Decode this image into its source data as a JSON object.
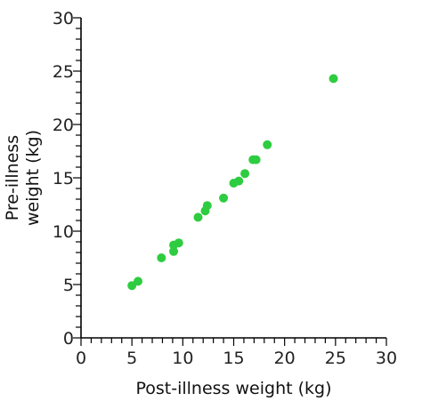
{
  "chart_data": {
    "type": "scatter",
    "title": "",
    "xlabel": "Post-illness weight (kg)",
    "ylabel_lines": [
      "Pre-illness",
      "weight (kg)"
    ],
    "xlim": [
      0,
      30
    ],
    "ylim": [
      0,
      30
    ],
    "major_ticks": [
      0,
      5,
      10,
      15,
      20,
      25,
      30
    ],
    "minor_tick_step": 1,
    "grid": false,
    "point_color": "#2ecc40",
    "series": [
      {
        "points": [
          {
            "x": 5.0,
            "y": 4.9
          },
          {
            "x": 5.6,
            "y": 5.3
          },
          {
            "x": 7.9,
            "y": 7.5
          },
          {
            "x": 9.1,
            "y": 8.1
          },
          {
            "x": 9.1,
            "y": 8.7
          },
          {
            "x": 9.6,
            "y": 8.9
          },
          {
            "x": 11.5,
            "y": 11.3
          },
          {
            "x": 12.2,
            "y": 11.9
          },
          {
            "x": 12.4,
            "y": 12.4
          },
          {
            "x": 14.0,
            "y": 13.1
          },
          {
            "x": 15.0,
            "y": 14.5
          },
          {
            "x": 15.5,
            "y": 14.7
          },
          {
            "x": 16.1,
            "y": 15.4
          },
          {
            "x": 16.9,
            "y": 16.7
          },
          {
            "x": 17.2,
            "y": 16.7
          },
          {
            "x": 18.3,
            "y": 18.1
          },
          {
            "x": 24.8,
            "y": 24.3
          }
        ]
      }
    ]
  }
}
